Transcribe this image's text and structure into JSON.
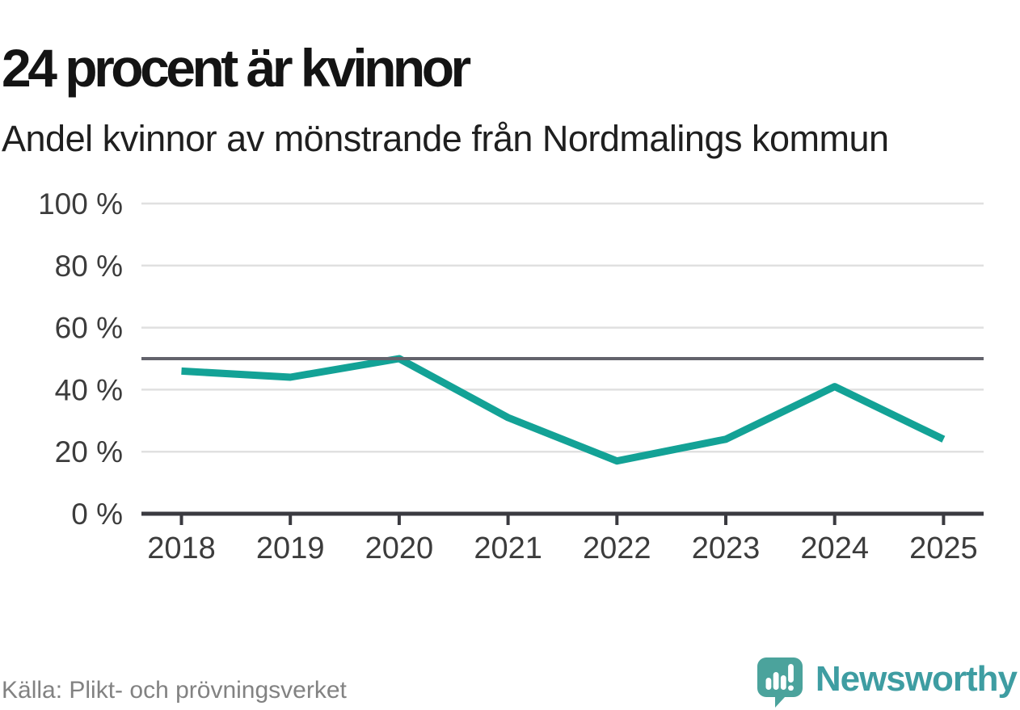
{
  "header": {
    "title": "24 procent är kvinnor",
    "subtitle": "Andel kvinnor av mönstrande från Nordmalings kommun"
  },
  "chart_data": {
    "type": "line",
    "title": "24 procent är kvinnor",
    "subtitle": "Andel kvinnor av mönstrande från Nordmalings kommun",
    "categories": [
      "2018",
      "2019",
      "2020",
      "2021",
      "2022",
      "2023",
      "2024",
      "2025"
    ],
    "series": [
      {
        "name": "Andel kvinnor av mönstrande",
        "values": [
          46,
          44,
          50,
          31,
          17,
          24,
          41,
          24
        ]
      }
    ],
    "unit": "%",
    "ylim": [
      0,
      100
    ],
    "y_ticks": [
      0,
      20,
      40,
      60,
      80,
      100
    ],
    "y_tick_suffix": " %",
    "reference_line": 50,
    "grid": true,
    "legend": "none",
    "colors": {
      "line": "#13a296",
      "reference_line": "#63636c",
      "gridline": "#e0e0e0",
      "axis": "#3a3a40",
      "tick_label": "#3c3c3c"
    }
  },
  "footer": {
    "source": "Källa: Plikt- och prövningsverket",
    "brand": "Newsworthy"
  },
  "colors": {
    "title": "#141414",
    "subtitle": "#1f1f1f",
    "source": "#828282",
    "brand_text": "#3e9da2",
    "logo_bubble": "#4ba39c"
  }
}
